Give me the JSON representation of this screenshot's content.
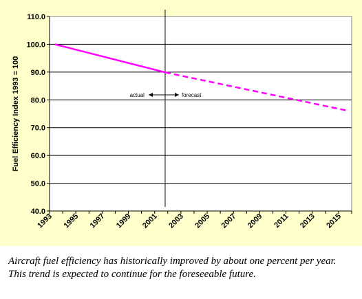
{
  "chart_data": {
    "type": "line",
    "ylabel": "Fuel Efficiency Index 1993 = 100",
    "xlabel": "",
    "ylim": [
      40.0,
      110.0
    ],
    "y_ticks": [
      "40.0",
      "50.0",
      "60.0",
      "70.0",
      "80.0",
      "90.0",
      "100.0",
      "110.0"
    ],
    "x_ticks": [
      "1993",
      "1995",
      "1997",
      "1999",
      "2001",
      "2003",
      "2005",
      "2007",
      "2009",
      "2011",
      "2013",
      "2015"
    ],
    "xlim": [
      1993,
      2016
    ],
    "grid": "horizontal",
    "series": [
      {
        "segment": "actual",
        "style": "solid",
        "x": [
          1993.4,
          2001.8
        ],
        "y": [
          100.0,
          89.9
        ]
      },
      {
        "segment": "forecast",
        "style": "dashed",
        "x": [
          2001.8,
          2015.7
        ],
        "y": [
          89.9,
          76.1
        ]
      }
    ],
    "divider_x": 2001.8,
    "annotations": {
      "actual": "actual",
      "forecast": "forecast"
    },
    "colors": {
      "line": "#ff00ff",
      "grid": "#000000",
      "panel": "#ffffcc"
    }
  },
  "caption": "Aircraft fuel efficiency has historically improved by about one percent per year. This trend is expected to continue for the foreseeable future."
}
